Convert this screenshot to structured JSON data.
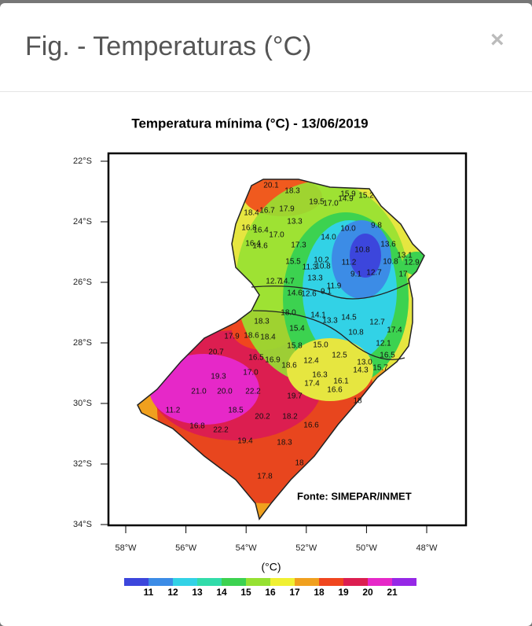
{
  "modal": {
    "title": "Fig. - Temperaturas (°C)",
    "close": "×"
  },
  "figure": {
    "title": "Temperatura mínima  (°C) - 13/06/2019",
    "lat_labels": [
      "22°S",
      "24°S",
      "26°S",
      "28°S",
      "30°S",
      "32°S",
      "34°S"
    ],
    "lon_labels": [
      "58°W",
      "56°W",
      "54°W",
      "52°W",
      "50°W",
      "48°W"
    ],
    "source": "Fonte: SIMEPAR/INMET",
    "stations": [
      "20.1",
      "18.3",
      "19.5",
      "17.0",
      "14.9",
      "15.9",
      "15.2",
      "18.4",
      "16.7",
      "17.9",
      "13.3",
      "16.8",
      "16.4",
      "17.0",
      "10.0",
      "9.8",
      "14.0",
      "16.4",
      "14.6",
      "17.3",
      "10.8",
      "13.6",
      "15.5",
      "10.2",
      "11.3",
      "10.8",
      "11.2",
      "10.8",
      "13.1",
      "12.9",
      "9.1",
      "12.7",
      "17",
      "12.7",
      "14.7",
      "13.3",
      "11.9",
      "9.1",
      "14.6",
      "12.6",
      "18.0",
      "14.1",
      "13.3",
      "14.5",
      "12.7",
      "17.4",
      "18.3",
      "15.4",
      "10.8",
      "17.9",
      "18.6",
      "18.4",
      "15.8",
      "15.0",
      "12.1",
      "20.7",
      "16.5",
      "16.9",
      "18.6",
      "12.4",
      "12.5",
      "16.5",
      "13.0",
      "15.7",
      "14.3",
      "19.3",
      "17.0",
      "16.3",
      "16.1",
      "17.4",
      "16.6",
      "21.0",
      "20.0",
      "22.2",
      "19.7",
      "18",
      "18.5",
      "20.2",
      "18.2",
      "11.2",
      "16.8",
      "22.2",
      "16.6",
      "19.4",
      "18.3",
      "18",
      "17.8"
    ],
    "legend": {
      "unit": "(°C)",
      "labels": [
        "11",
        "12",
        "13",
        "14",
        "15",
        "16",
        "17",
        "18",
        "19",
        "20",
        "21"
      ],
      "colors": [
        "#3c46dc",
        "#3c8ce6",
        "#32d2e6",
        "#32dcaa",
        "#3cd250",
        "#96e132",
        "#f0f032",
        "#f0a01e",
        "#f0461e",
        "#dc1e50",
        "#e628c8",
        "#9628e6"
      ]
    }
  }
}
